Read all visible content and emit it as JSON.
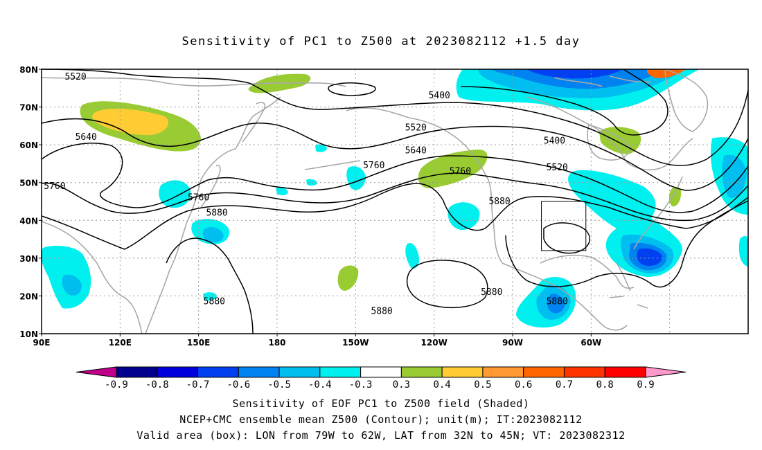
{
  "title": "Sensitivity of PC1 to Z500 at 2023082112 +1.5 day",
  "axes": {
    "lat_labels": [
      "80N",
      "70N",
      "60N",
      "50N",
      "40N",
      "30N",
      "20N",
      "10N"
    ],
    "lon_labels": [
      "90E",
      "120E",
      "150E",
      "180",
      "150W",
      "120W",
      "90W",
      "60W"
    ]
  },
  "contour_labels": [
    {
      "text": "5520",
      "lon": 103,
      "lat": 78
    },
    {
      "text": "5400",
      "lon": -118,
      "lat": 73
    },
    {
      "text": "5520",
      "lon": -127,
      "lat": 64.5
    },
    {
      "text": "5640",
      "lon": -127,
      "lat": 58.5
    },
    {
      "text": "5640",
      "lon": 107,
      "lat": 62
    },
    {
      "text": "5400",
      "lon": -74,
      "lat": 61
    },
    {
      "text": "5520",
      "lon": -73,
      "lat": 54
    },
    {
      "text": "5760",
      "lon": -143,
      "lat": 54.5
    },
    {
      "text": "5760",
      "lon": -110,
      "lat": 53
    },
    {
      "text": "5760",
      "lon": 95,
      "lat": 49
    },
    {
      "text": "5760",
      "lon": 150,
      "lat": 46
    },
    {
      "text": "5880",
      "lon": 157,
      "lat": 42
    },
    {
      "text": "5880",
      "lon": -95,
      "lat": 45
    },
    {
      "text": "5880",
      "lon": -98,
      "lat": 21
    },
    {
      "text": "5880",
      "lon": -73,
      "lat": 18.5
    },
    {
      "text": "5880",
      "lon": -140,
      "lat": 16
    },
    {
      "text": "5880",
      "lon": 156,
      "lat": 18.5
    }
  ],
  "colorbar": {
    "labels": [
      "-0.9",
      "-0.8",
      "-0.7",
      "-0.6",
      "-0.5",
      "-0.4",
      "-0.3",
      "0.3",
      "0.4",
      "0.5",
      "0.6",
      "0.7",
      "0.8",
      "0.9"
    ],
    "colors": [
      "#c0008a",
      "#00008c",
      "#0000dc",
      "#0040f0",
      "#0082f0",
      "#00bef0",
      "#00f0f0",
      "#ffffff",
      "#99cc33",
      "#ffcc33",
      "#ff9933",
      "#ff6600",
      "#ff3300",
      "#ff0000",
      "#ff99cc"
    ]
  },
  "box": {
    "lon_w": -79,
    "lon_e": -62,
    "lat_s": 32,
    "lat_n": 45
  },
  "caption": {
    "line1": "Sensitivity of EOF PC1 to Z500 field (Shaded)",
    "line2": "NCEP+CMC ensemble mean Z500 (Contour); unit(m); IT:2023082112",
    "line3": "Valid area (box): LON from 79W to 62W, LAT from 32N to 45N; VT: 2023082312"
  }
}
